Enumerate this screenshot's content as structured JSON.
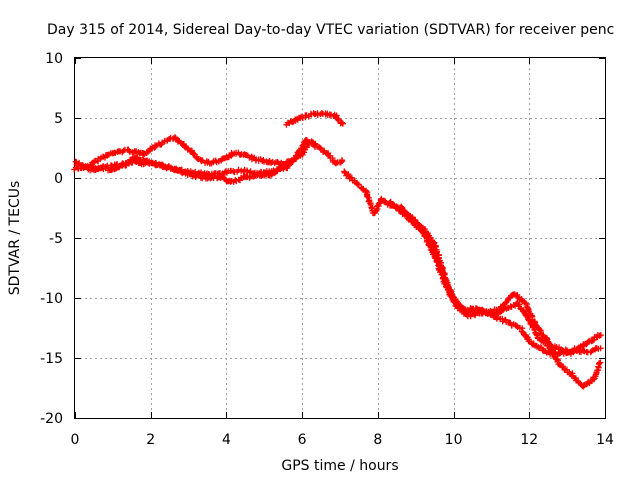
{
  "chart_data": {
    "type": "scatter",
    "title": "Day 315 of 2014, Sidereal Day-to-day VTEC variation (SDTVAR) for receiver penc",
    "xlabel": "GPS time / hours",
    "ylabel": "SDTVAR / TECUs",
    "xlim": [
      0,
      14
    ],
    "ylim": [
      -20,
      10
    ],
    "x_ticks": [
      "0",
      "2",
      "4",
      "6",
      "8",
      "10",
      "12",
      "14"
    ],
    "y_ticks": [
      "10",
      "5",
      "0",
      "-5",
      "-10",
      "-15",
      "-20"
    ],
    "grid": true,
    "marker": "+",
    "color": "#ff0000",
    "series": [
      {
        "name": "trace-1",
        "x": [
          0.0,
          0.3,
          0.6,
          1.0,
          1.4,
          1.8,
          2.2,
          2.6,
          3.0,
          3.3,
          3.6,
          3.9,
          4.2,
          4.5,
          4.8,
          5.2,
          5.6
        ],
        "y": [
          0.8,
          0.9,
          1.5,
          2.1,
          2.3,
          2.0,
          2.8,
          3.4,
          2.4,
          1.5,
          1.2,
          1.6,
          2.1,
          1.9,
          1.5,
          1.3,
          1.1
        ]
      },
      {
        "name": "trace-2",
        "x": [
          0.0,
          0.4,
          0.8,
          1.2,
          1.6,
          2.0,
          2.4,
          2.8,
          3.2,
          3.6,
          4.0,
          4.4,
          4.8,
          5.2,
          5.6,
          5.9,
          6.1,
          6.3,
          6.6,
          6.9,
          7.1
        ],
        "y": [
          1.3,
          0.7,
          0.9,
          1.1,
          1.7,
          1.3,
          0.9,
          0.6,
          0.4,
          0.3,
          0.5,
          0.6,
          0.4,
          0.5,
          0.9,
          2.1,
          3.1,
          2.8,
          2.2,
          1.2,
          1.5
        ]
      },
      {
        "name": "trace-3",
        "x": [
          0.2,
          0.6,
          1.0,
          1.5,
          2.0,
          2.5,
          3.0,
          3.5,
          3.9,
          4.1,
          4.4,
          4.8,
          5.2,
          5.6,
          6.0,
          6.2,
          6.4
        ],
        "y": [
          1.0,
          0.8,
          0.7,
          1.3,
          1.2,
          0.9,
          0.3,
          0.0,
          0.1,
          -0.4,
          0.0,
          0.2,
          0.3,
          1.3,
          2.0,
          3.0,
          2.9
        ]
      },
      {
        "name": "trace-4",
        "x": [
          5.6,
          5.8,
          6.0,
          6.3,
          6.6,
          6.9,
          7.1
        ],
        "y": [
          4.5,
          4.8,
          5.1,
          5.3,
          5.4,
          5.1,
          4.4
        ]
      },
      {
        "name": "trace-5",
        "x": [
          7.1,
          7.4,
          7.7,
          7.9,
          8.1,
          8.3,
          8.6,
          8.9,
          9.2,
          9.5,
          9.8,
          10.0,
          10.3,
          10.7,
          11.1,
          11.4,
          11.7,
          12.0,
          12.2,
          12.5,
          12.8,
          13.1,
          13.4,
          13.7,
          13.9
        ],
        "y": [
          0.5,
          -0.3,
          -1.2,
          -3.0,
          -1.8,
          -2.2,
          -2.6,
          -3.3,
          -4.2,
          -5.5,
          -8.5,
          -10.0,
          -11.2,
          -11.0,
          -11.4,
          -10.8,
          -10.5,
          -11.8,
          -13.2,
          -14.0,
          -14.2,
          -14.6,
          -14.0,
          -13.4,
          -13.0
        ]
      },
      {
        "name": "trace-6",
        "x": [
          8.3,
          8.6,
          8.9,
          9.2,
          9.5,
          9.8,
          10.1,
          10.4,
          10.8,
          11.2,
          11.6,
          11.9,
          12.2,
          12.5,
          12.8,
          13.1,
          13.4,
          13.7,
          13.9
        ],
        "y": [
          -2.0,
          -2.8,
          -3.6,
          -4.6,
          -6.5,
          -9.0,
          -10.8,
          -11.5,
          -11.2,
          -11.0,
          -9.6,
          -10.5,
          -12.4,
          -13.6,
          -15.6,
          -16.3,
          -17.4,
          -16.8,
          -15.2
        ]
      },
      {
        "name": "trace-7",
        "x": [
          8.6,
          8.9,
          9.3,
          9.7,
          10.0,
          10.3,
          10.6,
          11.0,
          11.4,
          11.8,
          12.0,
          12.3,
          12.6,
          12.9,
          13.2,
          13.5,
          13.9
        ],
        "y": [
          -2.4,
          -3.4,
          -4.8,
          -7.8,
          -10.4,
          -11.0,
          -10.9,
          -11.4,
          -12.0,
          -12.6,
          -13.6,
          -14.2,
          -14.7,
          -14.6,
          -14.3,
          -14.5,
          -14.2
        ]
      }
    ]
  }
}
